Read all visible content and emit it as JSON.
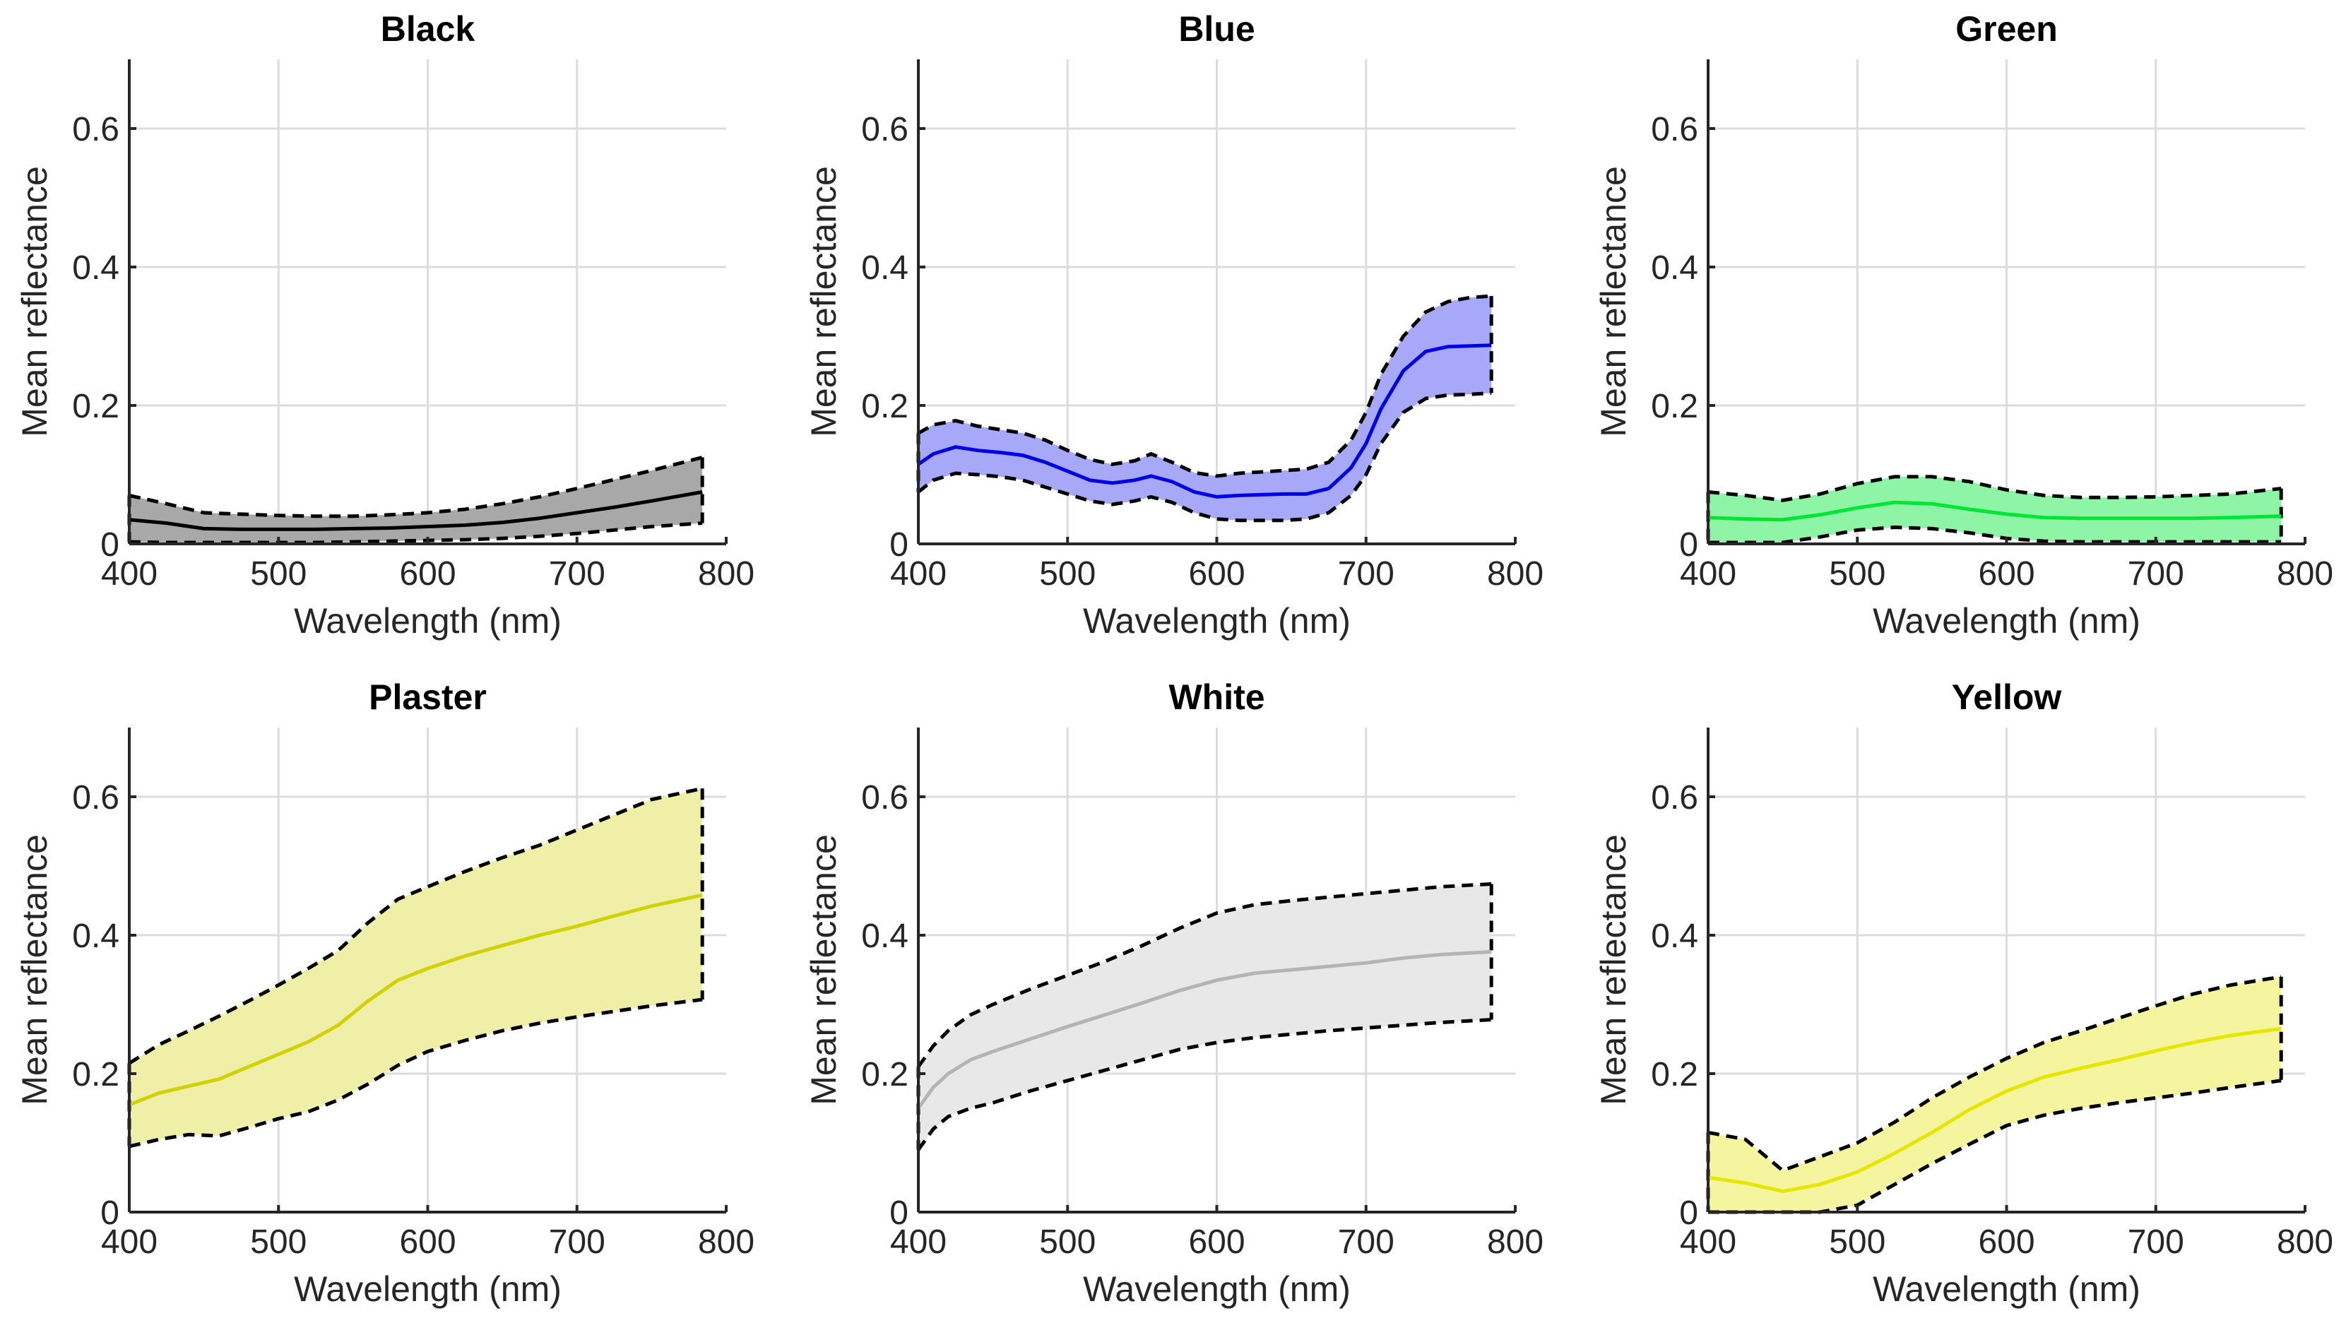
{
  "chart_data": [
    {
      "type": "line",
      "title": "Black",
      "xlabel": "Wavelength (nm)",
      "ylabel": "Mean reflectance",
      "xlim": [
        400,
        800
      ],
      "ylim": [
        0,
        0.7
      ],
      "xticks": [
        "400",
        "500",
        "600",
        "700",
        "800"
      ],
      "yticks": [
        "0",
        "0.2",
        "0.4",
        "0.6"
      ],
      "grid": true,
      "color": "#000000",
      "fill": "#a8a8a8",
      "x": [
        400,
        425,
        450,
        475,
        500,
        525,
        550,
        575,
        600,
        625,
        650,
        675,
        700,
        725,
        750,
        784
      ],
      "mean": [
        0.035,
        0.03,
        0.022,
        0.021,
        0.021,
        0.021,
        0.022,
        0.023,
        0.025,
        0.027,
        0.031,
        0.037,
        0.045,
        0.053,
        0.062,
        0.075
      ],
      "upper": [
        0.07,
        0.058,
        0.045,
        0.043,
        0.041,
        0.04,
        0.04,
        0.042,
        0.045,
        0.05,
        0.058,
        0.068,
        0.08,
        0.093,
        0.106,
        0.125
      ],
      "lower": [
        0.003,
        0.002,
        0.002,
        0.002,
        0.002,
        0.002,
        0.003,
        0.004,
        0.005,
        0.006,
        0.008,
        0.011,
        0.015,
        0.02,
        0.025,
        0.03
      ]
    },
    {
      "type": "line",
      "title": "Blue",
      "xlabel": "Wavelength (nm)",
      "ylabel": "Mean reflectance",
      "xlim": [
        400,
        800
      ],
      "ylim": [
        0,
        0.7
      ],
      "xticks": [
        "400",
        "500",
        "600",
        "700",
        "800"
      ],
      "yticks": [
        "0",
        "0.2",
        "0.4",
        "0.6"
      ],
      "grid": true,
      "color": "#0000e6",
      "fill": "#a8a8f8",
      "x": [
        400,
        410,
        425,
        440,
        455,
        470,
        485,
        500,
        515,
        530,
        545,
        556,
        570,
        585,
        600,
        615,
        630,
        645,
        660,
        675,
        690,
        700,
        710,
        725,
        740,
        755,
        770,
        784
      ],
      "mean": [
        0.115,
        0.13,
        0.14,
        0.135,
        0.132,
        0.128,
        0.118,
        0.105,
        0.092,
        0.088,
        0.092,
        0.098,
        0.09,
        0.075,
        0.068,
        0.07,
        0.071,
        0.072,
        0.072,
        0.08,
        0.11,
        0.145,
        0.195,
        0.25,
        0.278,
        0.285,
        0.286,
        0.287
      ],
      "upper": [
        0.16,
        0.172,
        0.178,
        0.17,
        0.165,
        0.16,
        0.15,
        0.135,
        0.122,
        0.115,
        0.12,
        0.13,
        0.118,
        0.103,
        0.098,
        0.102,
        0.104,
        0.106,
        0.108,
        0.118,
        0.15,
        0.19,
        0.245,
        0.3,
        0.335,
        0.35,
        0.356,
        0.358
      ],
      "lower": [
        0.075,
        0.092,
        0.102,
        0.1,
        0.097,
        0.092,
        0.082,
        0.072,
        0.062,
        0.057,
        0.062,
        0.068,
        0.06,
        0.045,
        0.036,
        0.034,
        0.034,
        0.034,
        0.036,
        0.045,
        0.07,
        0.1,
        0.145,
        0.19,
        0.21,
        0.215,
        0.216,
        0.218
      ]
    },
    {
      "type": "line",
      "title": "Green",
      "xlabel": "Wavelength (nm)",
      "ylabel": "Mean reflectance",
      "xlim": [
        400,
        800
      ],
      "ylim": [
        0,
        0.7
      ],
      "xticks": [
        "400",
        "500",
        "600",
        "700",
        "800"
      ],
      "yticks": [
        "0",
        "0.2",
        "0.4",
        "0.6"
      ],
      "grid": true,
      "color": "#00e633",
      "fill": "#8ef5a6",
      "x": [
        400,
        425,
        450,
        475,
        500,
        525,
        550,
        575,
        600,
        625,
        650,
        675,
        700,
        725,
        750,
        784
      ],
      "mean": [
        0.038,
        0.036,
        0.035,
        0.042,
        0.052,
        0.06,
        0.058,
        0.05,
        0.043,
        0.038,
        0.037,
        0.037,
        0.037,
        0.037,
        0.038,
        0.04
      ],
      "upper": [
        0.075,
        0.07,
        0.063,
        0.072,
        0.087,
        0.097,
        0.097,
        0.09,
        0.078,
        0.07,
        0.067,
        0.067,
        0.068,
        0.07,
        0.072,
        0.08
      ],
      "lower": [
        0.002,
        0.002,
        0.002,
        0.01,
        0.02,
        0.024,
        0.022,
        0.016,
        0.008,
        0.004,
        0.003,
        0.003,
        0.003,
        0.003,
        0.003,
        0.003
      ]
    },
    {
      "type": "line",
      "title": "Plaster",
      "xlabel": "Wavelength (nm)",
      "ylabel": "Mean reflectance",
      "xlim": [
        400,
        800
      ],
      "ylim": [
        0,
        0.7
      ],
      "xticks": [
        "400",
        "500",
        "600",
        "700",
        "800"
      ],
      "yticks": [
        "0",
        "0.2",
        "0.4",
        "0.6"
      ],
      "grid": true,
      "color": "#d2d200",
      "fill": "#efefa8",
      "x": [
        400,
        420,
        440,
        460,
        480,
        500,
        520,
        540,
        560,
        580,
        600,
        625,
        650,
        675,
        700,
        725,
        750,
        784
      ],
      "mean": [
        0.155,
        0.172,
        0.182,
        0.192,
        0.21,
        0.228,
        0.246,
        0.27,
        0.305,
        0.335,
        0.352,
        0.37,
        0.385,
        0.4,
        0.413,
        0.428,
        0.442,
        0.458
      ],
      "upper": [
        0.215,
        0.242,
        0.262,
        0.283,
        0.305,
        0.328,
        0.352,
        0.378,
        0.418,
        0.452,
        0.47,
        0.492,
        0.512,
        0.53,
        0.552,
        0.574,
        0.596,
        0.612
      ],
      "lower": [
        0.095,
        0.105,
        0.112,
        0.11,
        0.122,
        0.135,
        0.145,
        0.162,
        0.185,
        0.212,
        0.232,
        0.248,
        0.262,
        0.273,
        0.282,
        0.29,
        0.298,
        0.307
      ]
    },
    {
      "type": "line",
      "title": "White",
      "xlabel": "Wavelength (nm)",
      "ylabel": "Mean reflectance",
      "xlim": [
        400,
        800
      ],
      "ylim": [
        0,
        0.7
      ],
      "xticks": [
        "400",
        "500",
        "600",
        "700",
        "800"
      ],
      "yticks": [
        "0",
        "0.2",
        "0.4",
        "0.6"
      ],
      "grid": true,
      "color": "#b4b4b4",
      "fill": "#e8e8e8",
      "x": [
        400,
        410,
        420,
        435,
        450,
        475,
        500,
        525,
        550,
        575,
        600,
        625,
        650,
        675,
        700,
        725,
        750,
        784
      ],
      "mean": [
        0.15,
        0.18,
        0.2,
        0.22,
        0.232,
        0.25,
        0.268,
        0.285,
        0.302,
        0.32,
        0.335,
        0.345,
        0.35,
        0.355,
        0.36,
        0.367,
        0.372,
        0.376
      ],
      "upper": [
        0.21,
        0.24,
        0.262,
        0.285,
        0.3,
        0.322,
        0.342,
        0.362,
        0.385,
        0.41,
        0.432,
        0.444,
        0.45,
        0.455,
        0.46,
        0.465,
        0.47,
        0.474
      ],
      "lower": [
        0.09,
        0.12,
        0.138,
        0.15,
        0.158,
        0.175,
        0.19,
        0.205,
        0.22,
        0.235,
        0.245,
        0.252,
        0.257,
        0.262,
        0.266,
        0.27,
        0.274,
        0.278
      ]
    },
    {
      "type": "line",
      "title": "Yellow",
      "xlabel": "Wavelength (nm)",
      "ylabel": "Mean reflectance",
      "xlim": [
        400,
        800
      ],
      "ylim": [
        0,
        0.7
      ],
      "xticks": [
        "400",
        "500",
        "600",
        "700",
        "800"
      ],
      "yticks": [
        "0",
        "0.2",
        "0.4",
        "0.6"
      ],
      "grid": true,
      "color": "#e6e600",
      "fill": "#f5f5a0",
      "x": [
        400,
        425,
        450,
        475,
        500,
        525,
        550,
        575,
        600,
        625,
        650,
        675,
        700,
        725,
        750,
        784
      ],
      "mean": [
        0.05,
        0.042,
        0.03,
        0.04,
        0.058,
        0.085,
        0.115,
        0.148,
        0.175,
        0.195,
        0.208,
        0.22,
        0.233,
        0.245,
        0.255,
        0.265
      ],
      "upper": [
        0.115,
        0.105,
        0.06,
        0.08,
        0.1,
        0.13,
        0.165,
        0.195,
        0.222,
        0.245,
        0.262,
        0.28,
        0.298,
        0.315,
        0.328,
        0.34
      ],
      "lower": [
        0.0,
        0.0,
        0.0,
        0.0,
        0.01,
        0.04,
        0.07,
        0.098,
        0.125,
        0.14,
        0.15,
        0.158,
        0.165,
        0.172,
        0.18,
        0.19
      ]
    }
  ]
}
